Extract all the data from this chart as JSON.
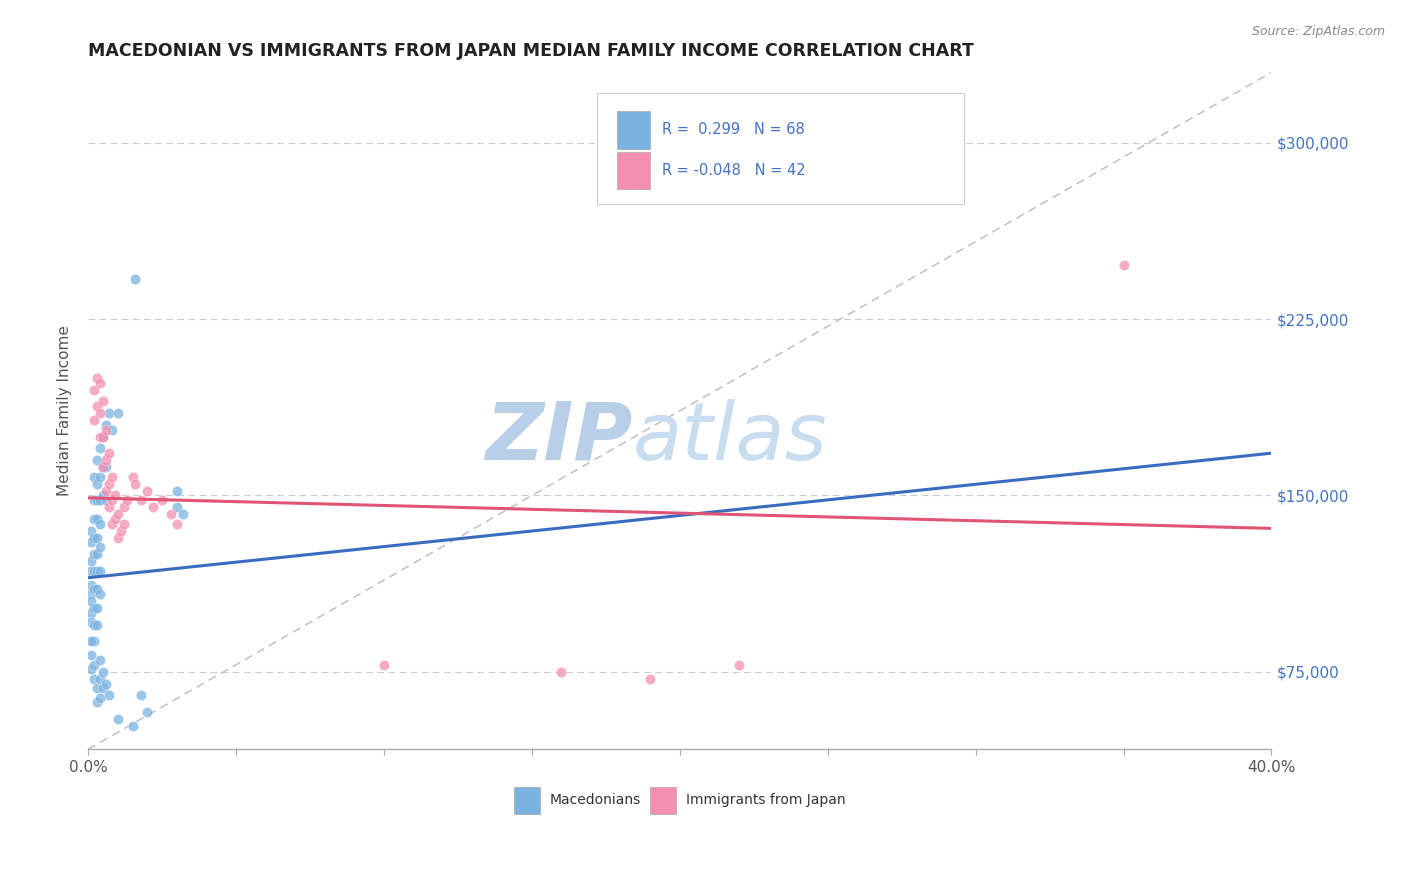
{
  "title": "MACEDONIAN VS IMMIGRANTS FROM JAPAN MEDIAN FAMILY INCOME CORRELATION CHART",
  "source": "Source: ZipAtlas.com",
  "ylabel": "Median Family Income",
  "yticks": [
    75000,
    150000,
    225000,
    300000
  ],
  "ytick_labels": [
    "$75,000",
    "$150,000",
    "$225,000",
    "$300,000"
  ],
  "xmin": 0.0,
  "xmax": 0.4,
  "ymin": 42000,
  "ymax": 330000,
  "blue_dots": [
    [
      0.001,
      130000
    ],
    [
      0.001,
      122000
    ],
    [
      0.001,
      118000
    ],
    [
      0.001,
      112000
    ],
    [
      0.001,
      108000
    ],
    [
      0.001,
      105000
    ],
    [
      0.001,
      100000
    ],
    [
      0.001,
      96000
    ],
    [
      0.001,
      135000
    ],
    [
      0.002,
      158000
    ],
    [
      0.002,
      148000
    ],
    [
      0.002,
      140000
    ],
    [
      0.002,
      132000
    ],
    [
      0.002,
      125000
    ],
    [
      0.002,
      118000
    ],
    [
      0.002,
      110000
    ],
    [
      0.002,
      102000
    ],
    [
      0.002,
      95000
    ],
    [
      0.002,
      88000
    ],
    [
      0.003,
      165000
    ],
    [
      0.003,
      155000
    ],
    [
      0.003,
      148000
    ],
    [
      0.003,
      140000
    ],
    [
      0.003,
      132000
    ],
    [
      0.003,
      125000
    ],
    [
      0.003,
      118000
    ],
    [
      0.003,
      110000
    ],
    [
      0.003,
      102000
    ],
    [
      0.003,
      95000
    ],
    [
      0.004,
      170000
    ],
    [
      0.004,
      158000
    ],
    [
      0.004,
      148000
    ],
    [
      0.004,
      138000
    ],
    [
      0.004,
      128000
    ],
    [
      0.004,
      118000
    ],
    [
      0.004,
      108000
    ],
    [
      0.005,
      175000
    ],
    [
      0.005,
      162000
    ],
    [
      0.005,
      150000
    ],
    [
      0.006,
      180000
    ],
    [
      0.006,
      162000
    ],
    [
      0.006,
      148000
    ],
    [
      0.007,
      185000
    ],
    [
      0.008,
      178000
    ],
    [
      0.01,
      185000
    ],
    [
      0.016,
      242000
    ],
    [
      0.03,
      152000
    ],
    [
      0.03,
      145000
    ],
    [
      0.032,
      142000
    ],
    [
      0.001,
      88000
    ],
    [
      0.001,
      82000
    ],
    [
      0.001,
      76000
    ],
    [
      0.002,
      78000
    ],
    [
      0.002,
      72000
    ],
    [
      0.003,
      68000
    ],
    [
      0.003,
      62000
    ],
    [
      0.004,
      80000
    ],
    [
      0.004,
      72000
    ],
    [
      0.004,
      64000
    ],
    [
      0.005,
      75000
    ],
    [
      0.005,
      68000
    ],
    [
      0.006,
      70000
    ],
    [
      0.007,
      65000
    ],
    [
      0.01,
      55000
    ],
    [
      0.015,
      52000
    ],
    [
      0.018,
      65000
    ],
    [
      0.02,
      58000
    ]
  ],
  "pink_dots": [
    [
      0.002,
      195000
    ],
    [
      0.003,
      200000
    ],
    [
      0.004,
      198000
    ],
    [
      0.003,
      188000
    ],
    [
      0.004,
      185000
    ],
    [
      0.005,
      190000
    ],
    [
      0.004,
      175000
    ],
    [
      0.005,
      175000
    ],
    [
      0.006,
      178000
    ],
    [
      0.005,
      162000
    ],
    [
      0.006,
      165000
    ],
    [
      0.007,
      168000
    ],
    [
      0.006,
      152000
    ],
    [
      0.007,
      155000
    ],
    [
      0.008,
      158000
    ],
    [
      0.007,
      145000
    ],
    [
      0.008,
      148000
    ],
    [
      0.009,
      150000
    ],
    [
      0.008,
      138000
    ],
    [
      0.009,
      140000
    ],
    [
      0.01,
      142000
    ],
    [
      0.01,
      132000
    ],
    [
      0.011,
      135000
    ],
    [
      0.012,
      138000
    ],
    [
      0.012,
      145000
    ],
    [
      0.013,
      148000
    ],
    [
      0.015,
      158000
    ],
    [
      0.016,
      155000
    ],
    [
      0.018,
      148000
    ],
    [
      0.02,
      152000
    ],
    [
      0.022,
      145000
    ],
    [
      0.025,
      148000
    ],
    [
      0.028,
      142000
    ],
    [
      0.03,
      138000
    ],
    [
      0.002,
      182000
    ],
    [
      0.35,
      248000
    ],
    [
      0.1,
      78000
    ],
    [
      0.22,
      78000
    ],
    [
      0.16,
      75000
    ],
    [
      0.19,
      72000
    ]
  ],
  "blue_line": {
    "x": [
      0.0,
      0.4
    ],
    "y": [
      115000,
      168000
    ]
  },
  "pink_line": {
    "x": [
      0.0,
      0.4
    ],
    "y": [
      149000,
      136000
    ]
  },
  "ref_line": {
    "x": [
      0.0,
      0.4
    ],
    "y": [
      42000,
      330000
    ]
  },
  "background_color": "#ffffff",
  "dot_size": 55,
  "blue_color": "#7bb3e0",
  "pink_color": "#f48fb1",
  "blue_line_color": "#3a6bbf",
  "pink_line_color": "#e05577",
  "ref_line_color": "#bbbbbb",
  "watermark_zip": "ZIP",
  "watermark_atlas": "atlas",
  "watermark_zip_color": "#b8cfe8",
  "watermark_atlas_color": "#c8ddf0"
}
